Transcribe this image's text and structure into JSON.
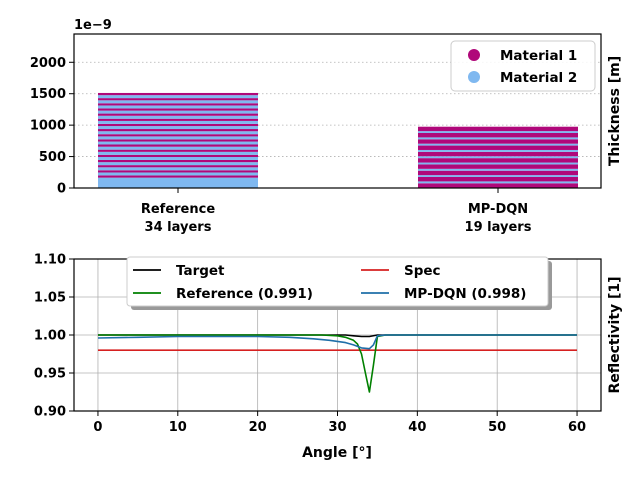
{
  "chart_data": [
    {
      "type": "bar",
      "stacked": true,
      "categories": [
        "Reference\n34 layers",
        "MP-DQN\n19 layers"
      ],
      "category_lines": [
        [
          "Reference",
          "34 layers"
        ],
        [
          "MP-DQN",
          "19 layers"
        ]
      ],
      "ylabel": "Thickness [m]",
      "ylabel_position": "right",
      "offset_text": "1e−9",
      "ylim": [
        0,
        2450
      ],
      "yticks": [
        0,
        500,
        1000,
        1500,
        2000
      ],
      "grid": "y-dotted",
      "legend": {
        "position": "top-right",
        "entries": [
          "Material 1",
          "Material 2"
        ]
      },
      "colors": {
        "Material 1": "#b0087a",
        "Material 2": "#7fb8f0"
      },
      "stacks": [
        {
          "name": "Reference",
          "layers": [
            [
              "Material 2",
              165
            ],
            [
              "Material 1",
              35
            ],
            [
              "Material 2",
              47
            ],
            [
              "Material 1",
              35
            ],
            [
              "Material 2",
              47
            ],
            [
              "Material 1",
              35
            ],
            [
              "Material 2",
              47
            ],
            [
              "Material 1",
              35
            ],
            [
              "Material 2",
              47
            ],
            [
              "Material 1",
              35
            ],
            [
              "Material 2",
              47
            ],
            [
              "Material 1",
              35
            ],
            [
              "Material 2",
              47
            ],
            [
              "Material 1",
              35
            ],
            [
              "Material 2",
              47
            ],
            [
              "Material 1",
              35
            ],
            [
              "Material 2",
              47
            ],
            [
              "Material 1",
              35
            ],
            [
              "Material 2",
              47
            ],
            [
              "Material 1",
              35
            ],
            [
              "Material 2",
              47
            ],
            [
              "Material 1",
              35
            ],
            [
              "Material 2",
              47
            ],
            [
              "Material 1",
              35
            ],
            [
              "Material 2",
              47
            ],
            [
              "Material 1",
              35
            ],
            [
              "Material 2",
              47
            ],
            [
              "Material 1",
              35
            ],
            [
              "Material 2",
              47
            ],
            [
              "Material 1",
              35
            ],
            [
              "Material 2",
              47
            ],
            [
              "Material 1",
              35
            ],
            [
              "Material 2",
              47
            ],
            [
              "Material 1",
              35
            ]
          ]
        },
        {
          "name": "MP-DQN",
          "layers": [
            [
              "Material 1",
              75
            ],
            [
              "Material 2",
              30
            ],
            [
              "Material 1",
              70
            ],
            [
              "Material 2",
              30
            ],
            [
              "Material 1",
              70
            ],
            [
              "Material 2",
              30
            ],
            [
              "Material 1",
              70
            ],
            [
              "Material 2",
              30
            ],
            [
              "Material 1",
              70
            ],
            [
              "Material 2",
              30
            ],
            [
              "Material 1",
              70
            ],
            [
              "Material 2",
              30
            ],
            [
              "Material 1",
              70
            ],
            [
              "Material 2",
              30
            ],
            [
              "Material 1",
              70
            ],
            [
              "Material 2",
              30
            ],
            [
              "Material 1",
              70
            ],
            [
              "Material 2",
              30
            ],
            [
              "Material 1",
              70
            ]
          ]
        }
      ]
    },
    {
      "type": "line",
      "xlabel": "Angle [°]",
      "ylabel": "Reflectivity [1]",
      "ylabel_position": "right",
      "xlim": [
        -3,
        63
      ],
      "ylim": [
        0.9,
        1.1
      ],
      "xticks": [
        0,
        10,
        20,
        30,
        40,
        50,
        60
      ],
      "yticks": [
        "0.90",
        "0.95",
        "1.00",
        "1.05",
        "1.10"
      ],
      "grid": true,
      "legend": {
        "position": "top-center",
        "columns": 2
      },
      "series": [
        {
          "name": "Target",
          "label": "Target",
          "color": "#000000",
          "x": [
            0,
            31,
            32,
            33,
            34,
            35,
            60
          ],
          "y": [
            1.0,
            1.0,
            0.999,
            0.998,
            0.998,
            1.0,
            1.0
          ]
        },
        {
          "name": "Spec",
          "label": "Spec",
          "color": "#d62020",
          "x": [
            0,
            60
          ],
          "y": [
            0.98,
            0.98
          ]
        },
        {
          "name": "Reference",
          "label": "Reference (0.991)",
          "color": "#008000",
          "x": [
            0,
            10,
            20,
            28,
            30,
            31,
            32,
            32.5,
            33,
            33.5,
            34,
            34.5,
            35,
            36,
            60
          ],
          "y": [
            1.0,
            1.0,
            1.0,
            1.0,
            0.999,
            0.997,
            0.993,
            0.988,
            0.975,
            0.95,
            0.925,
            0.96,
            0.998,
            1.0,
            1.0
          ]
        },
        {
          "name": "MP-DQN",
          "label": "MP-DQN (0.998)",
          "color": "#1f6fa8",
          "x": [
            0,
            5,
            10,
            15,
            20,
            24,
            27,
            29,
            31,
            32,
            33,
            34,
            34.5,
            35,
            36,
            60
          ],
          "y": [
            0.996,
            0.997,
            0.998,
            0.998,
            0.998,
            0.997,
            0.995,
            0.993,
            0.99,
            0.987,
            0.983,
            0.982,
            0.987,
            0.999,
            1.0,
            1.0
          ]
        }
      ]
    }
  ]
}
